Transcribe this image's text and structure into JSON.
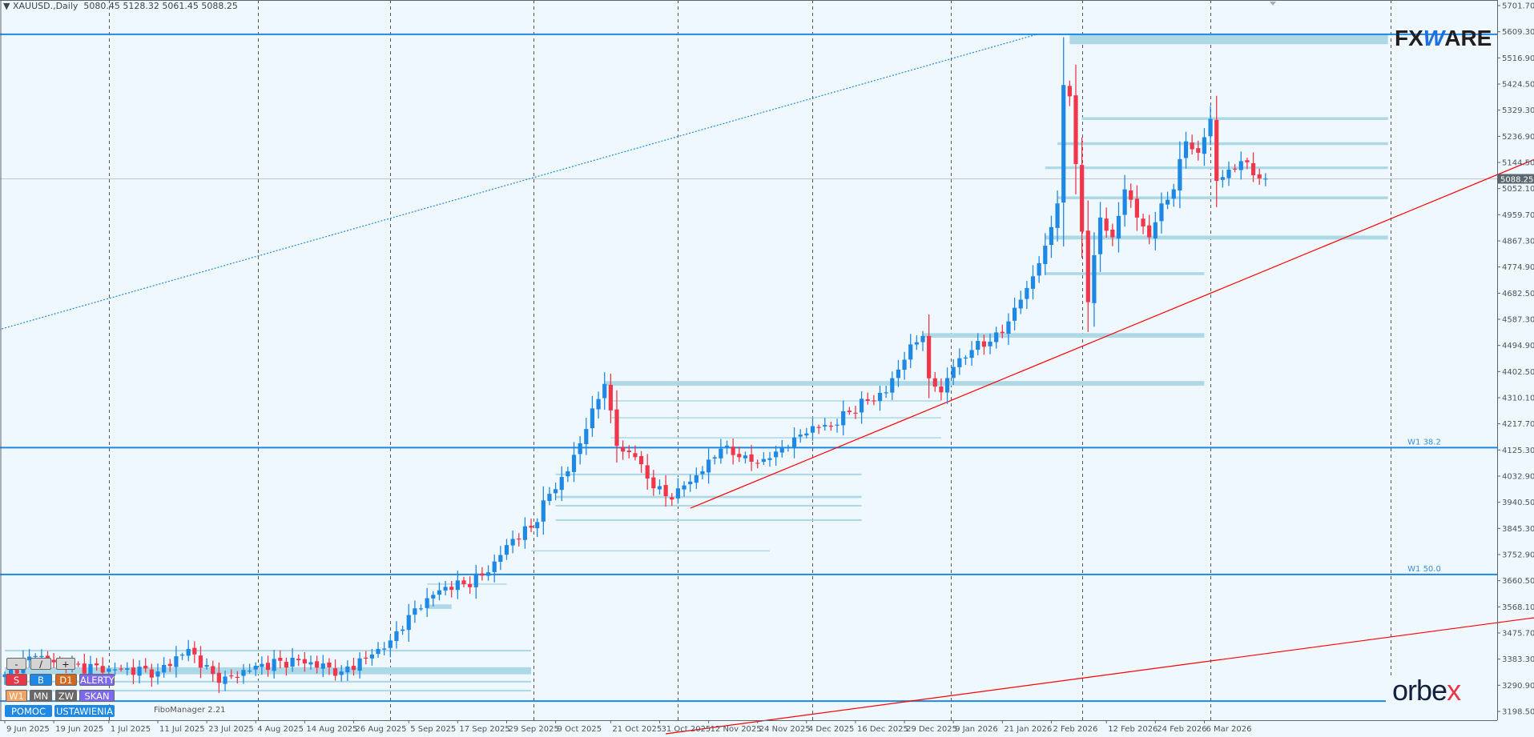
{
  "header": {
    "symbol": "XAUUSD.,Daily",
    "open": "5080.45",
    "high": "5128.32",
    "low": "5061.45",
    "close": "5088.25"
  },
  "panel": {
    "row1": [
      "-",
      "/",
      "+"
    ],
    "row2": [
      "S",
      "B",
      "D1",
      "ALERTY"
    ],
    "row3": [
      "W1",
      "MN",
      "ZW",
      "SKAN"
    ],
    "row4": [
      "POMOC",
      "USTAWIENIA"
    ],
    "indicator_label": "FiboManager 2.21"
  },
  "logos": {
    "fxware": "FXWARE",
    "orbex": "orbex"
  },
  "colors": {
    "background": "#f0f8ff",
    "bull": "#1e88e5",
    "bear": "#f0364a",
    "zone": "#add8e6",
    "level": "#1e88e5",
    "trend": "#ff0000",
    "axis_text": "#4a5560"
  },
  "chart_data": {
    "type": "candlestick",
    "title": "XAUUSD., Daily",
    "ylim": [
      3198.5,
      5701.7
    ],
    "bar_count": 207,
    "y_ticks": [
      "5701.70",
      "5609.30",
      "5516.90",
      "5424.50",
      "5329.30",
      "5236.90",
      "5144.50",
      "5052.10",
      "4959.70",
      "4867.30",
      "4774.90",
      "4682.50",
      "4587.30",
      "4494.90",
      "4402.50",
      "4310.10",
      "4217.70",
      "4125.30",
      "4032.90",
      "3940.50",
      "3845.30",
      "3752.90",
      "3660.50",
      "3568.10",
      "3475.70",
      "3383.30",
      "3290.90",
      "3198.50"
    ],
    "x_ticks": [
      {
        "bar": 0,
        "label": "9 Jun 2025"
      },
      {
        "bar": 8,
        "label": "19 Jun 2025"
      },
      {
        "bar": 17,
        "label": "1 Jul 2025"
      },
      {
        "bar": 25,
        "label": "11 Jul 2025"
      },
      {
        "bar": 33,
        "label": "23 Jul 2025"
      },
      {
        "bar": 41,
        "label": "4 Aug 2025"
      },
      {
        "bar": 49,
        "label": "14 Aug 2025"
      },
      {
        "bar": 57,
        "label": "26 Aug 2025"
      },
      {
        "bar": 66,
        "label": "5 Sep 2025"
      },
      {
        "bar": 74,
        "label": "17 Sep 2025"
      },
      {
        "bar": 82,
        "label": "29 Sep 2025"
      },
      {
        "bar": 90,
        "label": "9 Oct 2025"
      },
      {
        "bar": 99,
        "label": "21 Oct 2025"
      },
      {
        "bar": 107,
        "label": "31 Oct 2025"
      },
      {
        "bar": 115,
        "label": "12 Nov 2025"
      },
      {
        "bar": 123,
        "label": "24 Nov 2025"
      },
      {
        "bar": 131,
        "label": "4 Dec 2025"
      },
      {
        "bar": 139,
        "label": "16 Dec 2025"
      },
      {
        "bar": 147,
        "label": "29 Dec 2025"
      },
      {
        "bar": 155,
        "label": "9 Jan 2026"
      },
      {
        "bar": 163,
        "label": "21 Jan 2026"
      },
      {
        "bar": 171,
        "label": "2 Feb 2026"
      },
      {
        "bar": 180,
        "label": "12 Feb 2026"
      },
      {
        "bar": 188,
        "label": "24 Feb 2026"
      },
      {
        "bar": 196,
        "label": "6 Mar 2026"
      }
    ],
    "close_anchors": [
      [
        0,
        3330
      ],
      [
        5,
        3395
      ],
      [
        10,
        3360
      ],
      [
        17,
        3350
      ],
      [
        25,
        3340
      ],
      [
        30,
        3420
      ],
      [
        35,
        3300
      ],
      [
        41,
        3360
      ],
      [
        48,
        3380
      ],
      [
        55,
        3340
      ],
      [
        60,
        3400
      ],
      [
        63,
        3450
      ],
      [
        66,
        3540
      ],
      [
        69,
        3600
      ],
      [
        72,
        3640
      ],
      [
        75,
        3650
      ],
      [
        78,
        3680
      ],
      [
        80,
        3730
      ],
      [
        83,
        3810
      ],
      [
        86,
        3850
      ],
      [
        89,
        3970
      ],
      [
        92,
        4050
      ],
      [
        95,
        4200
      ],
      [
        98,
        4360
      ],
      [
        100,
        4140
      ],
      [
        103,
        4100
      ],
      [
        106,
        3990
      ],
      [
        109,
        3950
      ],
      [
        111,
        4000
      ],
      [
        114,
        4050
      ],
      [
        117,
        4130
      ],
      [
        120,
        4100
      ],
      [
        123,
        4080
      ],
      [
        126,
        4120
      ],
      [
        129,
        4170
      ],
      [
        132,
        4210
      ],
      [
        135,
        4210
      ],
      [
        138,
        4260
      ],
      [
        141,
        4300
      ],
      [
        144,
        4330
      ],
      [
        148,
        4500
      ],
      [
        150,
        4530
      ],
      [
        151,
        4380
      ],
      [
        153,
        4330
      ],
      [
        155,
        4420
      ],
      [
        158,
        4480
      ],
      [
        161,
        4510
      ],
      [
        163,
        4540
      ],
      [
        165,
        4630
      ],
      [
        167,
        4700
      ],
      [
        170,
        4850
      ],
      [
        172,
        5000
      ],
      [
        173,
        5420
      ],
      [
        174,
        5380
      ],
      [
        176,
        4900
      ],
      [
        177,
        4650
      ],
      [
        179,
        4950
      ],
      [
        181,
        4880
      ],
      [
        183,
        5050
      ],
      [
        185,
        4950
      ],
      [
        187,
        4880
      ],
      [
        189,
        5000
      ],
      [
        191,
        5050
      ],
      [
        193,
        5220
      ],
      [
        195,
        5180
      ],
      [
        197,
        5300
      ],
      [
        198,
        5080
      ],
      [
        200,
        5120
      ],
      [
        202,
        5150
      ],
      [
        204,
        5100
      ],
      [
        206,
        5088.25
      ]
    ],
    "current_price": "5088.25",
    "levels": [
      {
        "price": 5600,
        "label": ""
      },
      {
        "price": 4134,
        "label": "W1 38.2"
      },
      {
        "price": 3684,
        "label": "W1 50.0"
      },
      {
        "price": 3235,
        "label": ""
      }
    ],
    "zones": [
      {
        "from": 174,
        "to": 226,
        "top": 5600,
        "bottom": 5565
      },
      {
        "from": 176,
        "to": 226,
        "top": 5306,
        "bottom": 5296
      },
      {
        "from": 172,
        "to": 226,
        "top": 5217,
        "bottom": 5207
      },
      {
        "from": 170,
        "to": 226,
        "top": 5131,
        "bottom": 5122
      },
      {
        "from": 172,
        "to": 226,
        "top": 5025,
        "bottom": 5015
      },
      {
        "from": 170,
        "to": 226,
        "top": 4886,
        "bottom": 4872
      },
      {
        "from": 170,
        "to": 196,
        "top": 4756,
        "bottom": 4746
      },
      {
        "from": 150,
        "to": 196,
        "top": 4540,
        "bottom": 4524
      },
      {
        "from": 98,
        "to": 196,
        "top": 4370,
        "bottom": 4354
      },
      {
        "from": 99,
        "to": 153,
        "top": 4302,
        "bottom": 4298
      },
      {
        "from": 99,
        "to": 153,
        "top": 4242,
        "bottom": 4238
      },
      {
        "from": 99,
        "to": 153,
        "top": 4171,
        "bottom": 4167
      },
      {
        "from": 90,
        "to": 140,
        "top": 4042,
        "bottom": 4036
      },
      {
        "from": 90,
        "to": 140,
        "top": 3963,
        "bottom": 3955
      },
      {
        "from": 90,
        "to": 140,
        "top": 3931,
        "bottom": 3925
      },
      {
        "from": 90,
        "to": 140,
        "top": 3880,
        "bottom": 3874
      },
      {
        "from": 86,
        "to": 125,
        "top": 3770,
        "bottom": 3768
      },
      {
        "from": 69,
        "to": 82,
        "top": 3652,
        "bottom": 3648
      },
      {
        "from": 69,
        "to": 73,
        "top": 3578,
        "bottom": 3562
      },
      {
        "from": 0,
        "to": 86,
        "top": 3417,
        "bottom": 3411
      },
      {
        "from": 0,
        "to": 86,
        "top": 3355,
        "bottom": 3330
      },
      {
        "from": 0,
        "to": 86,
        "top": 3307,
        "bottom": 3301
      },
      {
        "from": 0,
        "to": 86,
        "top": 3275,
        "bottom": 3269
      }
    ],
    "trendlines": [
      {
        "name": "support-trendline",
        "style": "solid",
        "p1": [
          112,
          3919
        ],
        "p2": [
          250,
          5157
        ]
      },
      {
        "name": "lower-trendline",
        "style": "solid",
        "p1": [
          108,
          3119
        ],
        "p2": [
          250,
          3531
        ]
      },
      {
        "name": "channel-dotted-line",
        "style": "dotted",
        "p1": [
          -1,
          4552
        ],
        "p2": [
          168.7,
          5600
        ]
      }
    ],
    "period_separators": [
      17,
      41.3,
      63,
      86.4,
      110,
      132,
      154.6,
      176,
      197,
      226.5
    ]
  }
}
